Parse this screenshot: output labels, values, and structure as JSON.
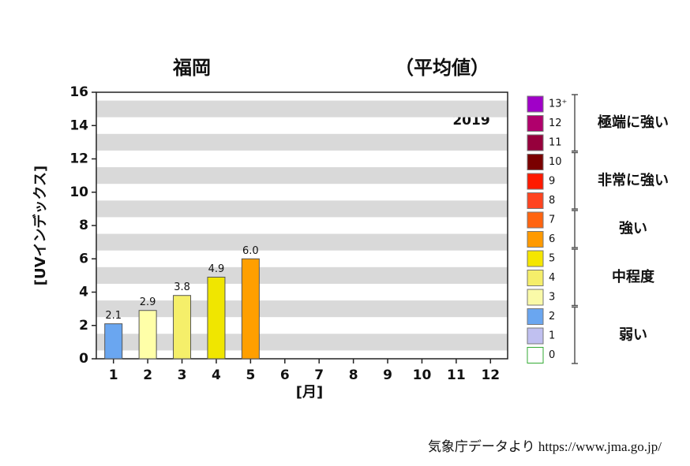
{
  "chart_data": {
    "type": "bar",
    "title": "福岡",
    "subtitle": "（平均値）",
    "annotation": "2019",
    "x_label": "[月]",
    "y_label": "[UVインデックス]",
    "categories": [
      "1",
      "2",
      "3",
      "4",
      "5",
      "6",
      "7",
      "8",
      "9",
      "10",
      "11",
      "12"
    ],
    "values": [
      2.1,
      2.9,
      3.8,
      4.9,
      6.0,
      null,
      null,
      null,
      null,
      null,
      null,
      null
    ],
    "value_labels": [
      "2.1",
      "2.9",
      "3.8",
      "4.9",
      "6.0",
      null,
      null,
      null,
      null,
      null,
      null,
      null
    ],
    "colors": [
      "#6aa6f0",
      "#ffffa8",
      "#f5ef6a",
      "#f0e600",
      "#ff9f00",
      null,
      null,
      null,
      null,
      null,
      null,
      null
    ],
    "ylim": [
      0,
      16
    ],
    "yticks": [
      0,
      2,
      4,
      6,
      8,
      10,
      12,
      14,
      16
    ],
    "legend": {
      "position": "right",
      "groups": [
        {
          "label": "極端に強い",
          "levels": [
            {
              "label": "13⁺",
              "color": "#a000c8"
            },
            {
              "label": "12",
              "color": "#b0006c"
            },
            {
              "label": "11",
              "color": "#96003c"
            }
          ]
        },
        {
          "label": "非常に強い",
          "levels": [
            {
              "label": "10",
              "color": "#7a0000"
            },
            {
              "label": "9",
              "color": "#ff1a00"
            },
            {
              "label": "8",
              "color": "#ff4420"
            }
          ]
        },
        {
          "label": "強い",
          "levels": [
            {
              "label": "7",
              "color": "#ff6410"
            },
            {
              "label": "6",
              "color": "#ff9a00"
            }
          ]
        },
        {
          "label": "中程度",
          "levels": [
            {
              "label": "5",
              "color": "#f5e600"
            },
            {
              "label": "4",
              "color": "#f5ee6a"
            },
            {
              "label": "3",
              "color": "#fafaa8"
            }
          ]
        },
        {
          "label": "弱い",
          "levels": [
            {
              "label": "2",
              "color": "#6aa6f0"
            },
            {
              "label": "1",
              "color": "#c0c0f0"
            },
            {
              "label": "0",
              "color": "#ffffff"
            }
          ]
        }
      ]
    },
    "source": "気象庁データより https://www.jma.go.jp/"
  }
}
